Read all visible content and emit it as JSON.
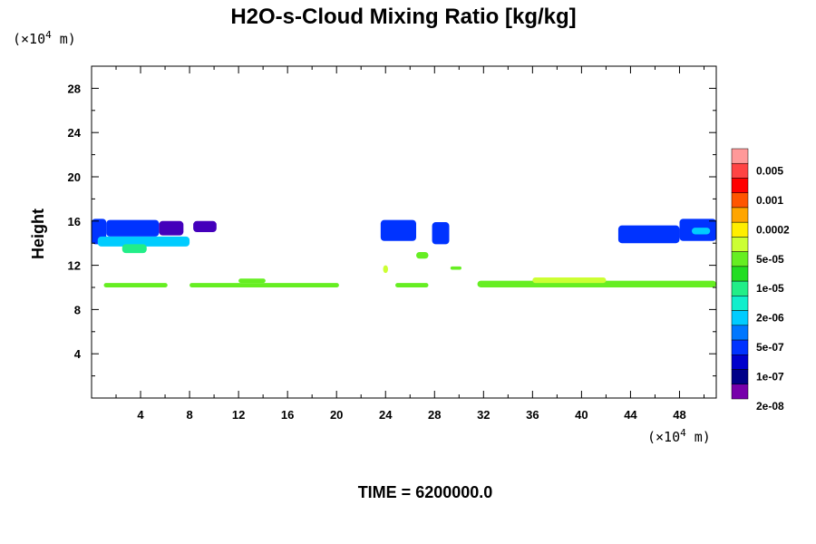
{
  "chart_data": {
    "type": "heatmap",
    "title": "H2O-s-Cloud Mixing Ratio [kg/kg]",
    "ylabel": "Height",
    "x_unit": "(×10",
    "x_unit_exp": "4",
    "x_unit_tail": " m)",
    "y_unit": "(×10",
    "y_unit_exp": "4",
    "y_unit_tail": " m)",
    "xlim": [
      0,
      51
    ],
    "ylim": [
      0,
      30
    ],
    "x_ticks": [
      "4",
      "8",
      "12",
      "16",
      "20",
      "24",
      "28",
      "32",
      "36",
      "40",
      "44",
      "48"
    ],
    "y_ticks": [
      "4",
      "8",
      "12",
      "16",
      "20",
      "24",
      "28"
    ],
    "time_label": "TIME = 6200000.0",
    "colorbar": {
      "labels": [
        "0.005",
        "0.001",
        "0.0002",
        "5e-05",
        "1e-05",
        "2e-06",
        "5e-07",
        "1e-07",
        "2e-08"
      ],
      "colors": [
        "#ff9999",
        "#ff4444",
        "#ff0000",
        "#ff5500",
        "#ffa500",
        "#ffee00",
        "#ccff33",
        "#66ee22",
        "#22dd22",
        "#22ee88",
        "#11eecc",
        "#00ccff",
        "#0077ff",
        "#0033ff",
        "#0000cc",
        "#000088",
        "#7700aa"
      ]
    },
    "regions": [
      {
        "x0": 0.0,
        "x1": 1.2,
        "y0": 13.9,
        "y1": 16.2,
        "level": "1e-07"
      },
      {
        "x0": 1.2,
        "x1": 5.5,
        "y0": 14.6,
        "y1": 16.1,
        "level": "1e-07"
      },
      {
        "x0": 5.5,
        "x1": 7.5,
        "y0": 14.7,
        "y1": 16.0,
        "level": "2e-08"
      },
      {
        "x0": 8.3,
        "x1": 10.2,
        "y0": 15.0,
        "y1": 16.0,
        "level": "2e-08"
      },
      {
        "x0": 0.5,
        "x1": 8.0,
        "y0": 13.7,
        "y1": 14.6,
        "level": "5e-07"
      },
      {
        "x0": 2.5,
        "x1": 4.5,
        "y0": 13.1,
        "y1": 13.9,
        "level": "2e-06"
      },
      {
        "x0": 23.6,
        "x1": 26.5,
        "y0": 14.2,
        "y1": 16.1,
        "level": "1e-07"
      },
      {
        "x0": 27.8,
        "x1": 29.2,
        "y0": 13.9,
        "y1": 15.9,
        "level": "1e-07"
      },
      {
        "x0": 26.5,
        "x1": 27.5,
        "y0": 12.6,
        "y1": 13.2,
        "level": "1e-05"
      },
      {
        "x0": 23.8,
        "x1": 24.2,
        "y0": 11.3,
        "y1": 12.0,
        "level": "5e-05"
      },
      {
        "x0": 29.3,
        "x1": 30.2,
        "y0": 11.6,
        "y1": 11.9,
        "level": "1e-05"
      },
      {
        "x0": 43.0,
        "x1": 48.0,
        "y0": 14.0,
        "y1": 15.6,
        "level": "1e-07"
      },
      {
        "x0": 48.0,
        "x1": 51.0,
        "y0": 14.2,
        "y1": 16.2,
        "level": "1e-07"
      },
      {
        "x0": 49.0,
        "x1": 50.5,
        "y0": 14.8,
        "y1": 15.4,
        "level": "5e-07"
      },
      {
        "x0": 1.0,
        "x1": 6.2,
        "y0": 10.0,
        "y1": 10.4,
        "level": "1e-05"
      },
      {
        "x0": 8.0,
        "x1": 20.2,
        "y0": 10.0,
        "y1": 10.4,
        "level": "1e-05"
      },
      {
        "x0": 12.0,
        "x1": 14.2,
        "y0": 10.4,
        "y1": 10.8,
        "level": "1e-05"
      },
      {
        "x0": 24.8,
        "x1": 27.5,
        "y0": 10.0,
        "y1": 10.4,
        "level": "1e-05"
      },
      {
        "x0": 31.5,
        "x1": 51.0,
        "y0": 10.0,
        "y1": 10.6,
        "level": "1e-05"
      },
      {
        "x0": 36.0,
        "x1": 42.0,
        "y0": 10.4,
        "y1": 10.9,
        "level": "5e-05"
      }
    ]
  }
}
